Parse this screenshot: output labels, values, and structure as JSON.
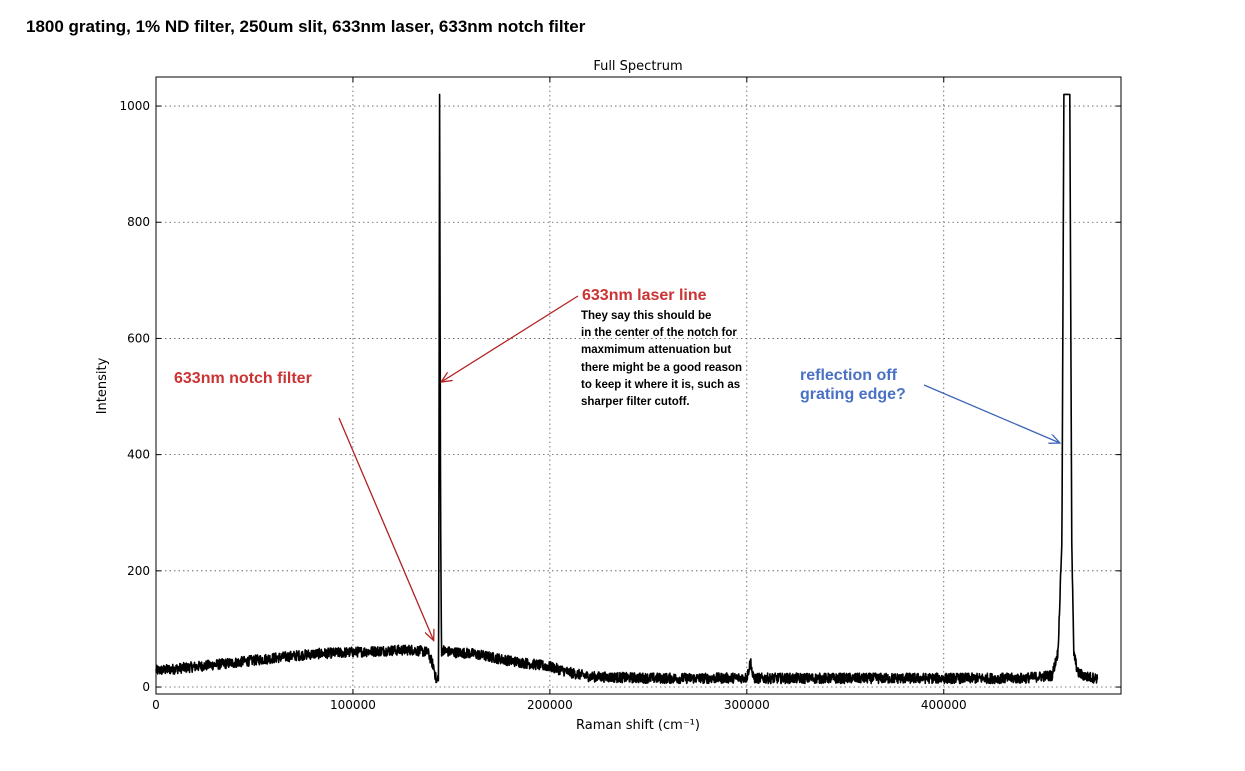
{
  "header": {
    "title": "1800 grating, 1% ND filter, 250um slit, 633nm laser, 633nm notch filter"
  },
  "colors": {
    "annotation_red": "#cc3333",
    "annotation_blue": "#4a72c4",
    "arrow_red": "#b22222",
    "arrow_blue": "#3f66b8",
    "spectrum": "#000000",
    "grid": "#555555"
  },
  "chart_data": {
    "type": "line",
    "title": "Full Spectrum",
    "xlabel": "Raman shift (cm⁻¹)",
    "ylabel": "Intensity",
    "xlim": [
      0,
      490000
    ],
    "ylim": [
      -12,
      1050
    ],
    "xticks": [
      0,
      100000,
      200000,
      300000,
      400000
    ],
    "xtick_labels": [
      "0",
      "100000",
      "200000",
      "300000",
      "400000"
    ],
    "yticks": [
      0,
      200,
      400,
      600,
      800,
      1000
    ],
    "ytick_labels": [
      "0",
      "200",
      "400",
      "600",
      "800",
      "1000"
    ],
    "grid": true,
    "grid_style": "dotted",
    "legend": "none",
    "series": [
      {
        "x": [
          0,
          20000,
          40000,
          60000,
          80000,
          100000,
          120000,
          130000,
          138000,
          141000,
          142500,
          143500,
          144000,
          144500,
          145000,
          145500,
          146500,
          150000,
          160000,
          180000,
          200000,
          210000,
          220000,
          240000,
          260000,
          280000,
          300000,
          302000,
          303000,
          304000,
          320000,
          340000,
          360000,
          380000,
          400000,
          420000,
          440000,
          455000,
          458000,
          460000,
          461000,
          462000,
          463000,
          464000,
          465000,
          466000,
          468000,
          472000,
          478000
        ],
        "y": [
          28,
          35,
          42,
          50,
          57,
          60,
          63,
          64,
          60,
          35,
          8,
          20,
          1020,
          300,
          55,
          65,
          62,
          60,
          58,
          45,
          35,
          25,
          18,
          16,
          15,
          15,
          16,
          45,
          18,
          15,
          15,
          15,
          15,
          15,
          15,
          15,
          15,
          20,
          60,
          250,
          1020,
          1020,
          1020,
          1020,
          250,
          60,
          25,
          18,
          15
        ]
      }
    ],
    "annotations": [
      {
        "text": "633nm laser line",
        "color": "annotation_red",
        "arrow_to": [
          144800,
          525
        ]
      },
      {
        "text": "They say this should be\nin the center of the notch for\nmaxmimum attenuation but\nthere might be a good reason\nto keep it where it is, such as\nsharper filter cutoff."
      },
      {
        "text": "633nm notch filter",
        "color": "annotation_red",
        "arrow_to": [
          141000,
          80
        ]
      },
      {
        "text": "reflection off\ngrating edge?",
        "color": "annotation_blue",
        "arrow_to": [
          459000,
          420
        ]
      }
    ]
  }
}
